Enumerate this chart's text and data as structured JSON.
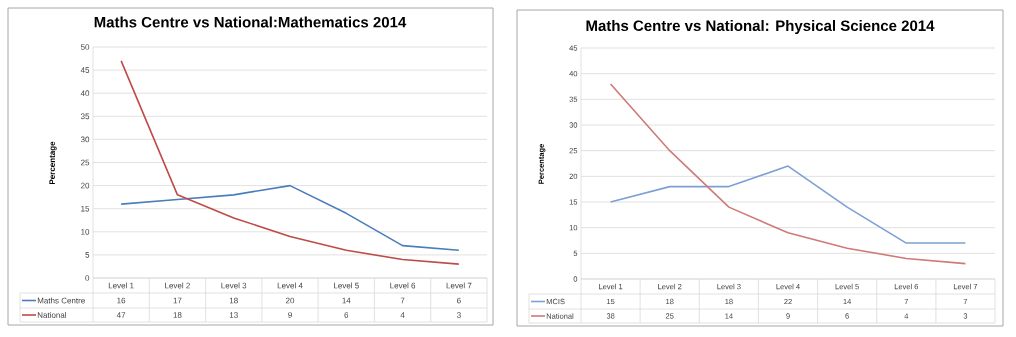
{
  "chart_data": [
    {
      "type": "line",
      "title": "Maths Centre vs National:Mathematics 2014",
      "ylabel": "Percentage",
      "categories": [
        "Level 1",
        "Level 2",
        "Level 3",
        "Level 4",
        "Level 5",
        "Level 6",
        "Level 7"
      ],
      "series": [
        {
          "name": "Maths Centre",
          "color": "#4a7ebb",
          "values": [
            16,
            17,
            18,
            20,
            14,
            7,
            6
          ]
        },
        {
          "name": "National",
          "color": "#be4b48",
          "values": [
            47,
            18,
            13,
            9,
            6,
            4,
            3
          ]
        }
      ],
      "ylim": [
        0,
        50
      ],
      "yticks": [
        0,
        5,
        10,
        15,
        20,
        25,
        30,
        35,
        40,
        45,
        50
      ],
      "grid": "y",
      "legend": "bottom",
      "data_labels": true
    },
    {
      "type": "line",
      "title": "Maths Centre vs National: Physical Science 2014",
      "ylabel": "Percentage",
      "categories": [
        "Level 1",
        "Level 2",
        "Level 3",
        "Level 4",
        "Level 5",
        "Level 6",
        "Level 7"
      ],
      "series": [
        {
          "name": "MCIS",
          "color": "#7da0d3",
          "values": [
            15,
            18,
            18,
            22,
            14,
            7,
            7
          ]
        },
        {
          "name": "National",
          "color": "#cf7a76",
          "values": [
            38,
            25,
            14,
            9,
            6,
            4,
            3
          ]
        }
      ],
      "ylim": [
        0,
        45
      ],
      "yticks": [
        0,
        5,
        10,
        15,
        20,
        25,
        30,
        35,
        40,
        45
      ],
      "grid": "y",
      "legend": "bottom",
      "data_labels": true
    }
  ]
}
